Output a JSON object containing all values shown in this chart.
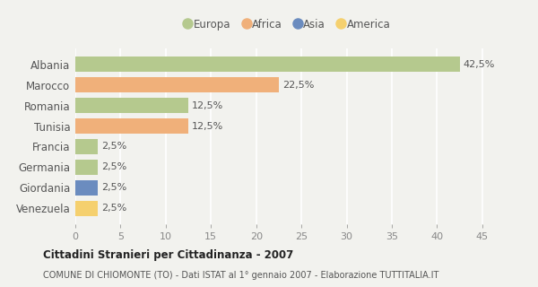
{
  "categories": [
    "Albania",
    "Marocco",
    "Romania",
    "Tunisia",
    "Francia",
    "Germania",
    "Giordania",
    "Venezuela"
  ],
  "values": [
    42.5,
    22.5,
    12.5,
    12.5,
    2.5,
    2.5,
    2.5,
    2.5
  ],
  "colors": [
    "#b5c98e",
    "#f0b07a",
    "#b5c98e",
    "#f0b07a",
    "#b5c98e",
    "#b5c98e",
    "#6b8cbf",
    "#f5d06e"
  ],
  "labels": [
    "42,5%",
    "22,5%",
    "12,5%",
    "12,5%",
    "2,5%",
    "2,5%",
    "2,5%",
    "2,5%"
  ],
  "legend_labels": [
    "Europa",
    "Africa",
    "Asia",
    "America"
  ],
  "legend_colors": [
    "#b5c98e",
    "#f0b07a",
    "#6b8cbf",
    "#f5d06e"
  ],
  "xlim": [
    0,
    47
  ],
  "xticks": [
    0,
    5,
    10,
    15,
    20,
    25,
    30,
    35,
    40,
    45
  ],
  "title": "Cittadini Stranieri per Cittadinanza - 2007",
  "subtitle": "COMUNE DI CHIOMONTE (TO) - Dati ISTAT al 1° gennaio 2007 - Elaborazione TUTTITALIA.IT",
  "bg_color": "#f2f2ee",
  "grid_color": "#ffffff",
  "bar_height": 0.72
}
